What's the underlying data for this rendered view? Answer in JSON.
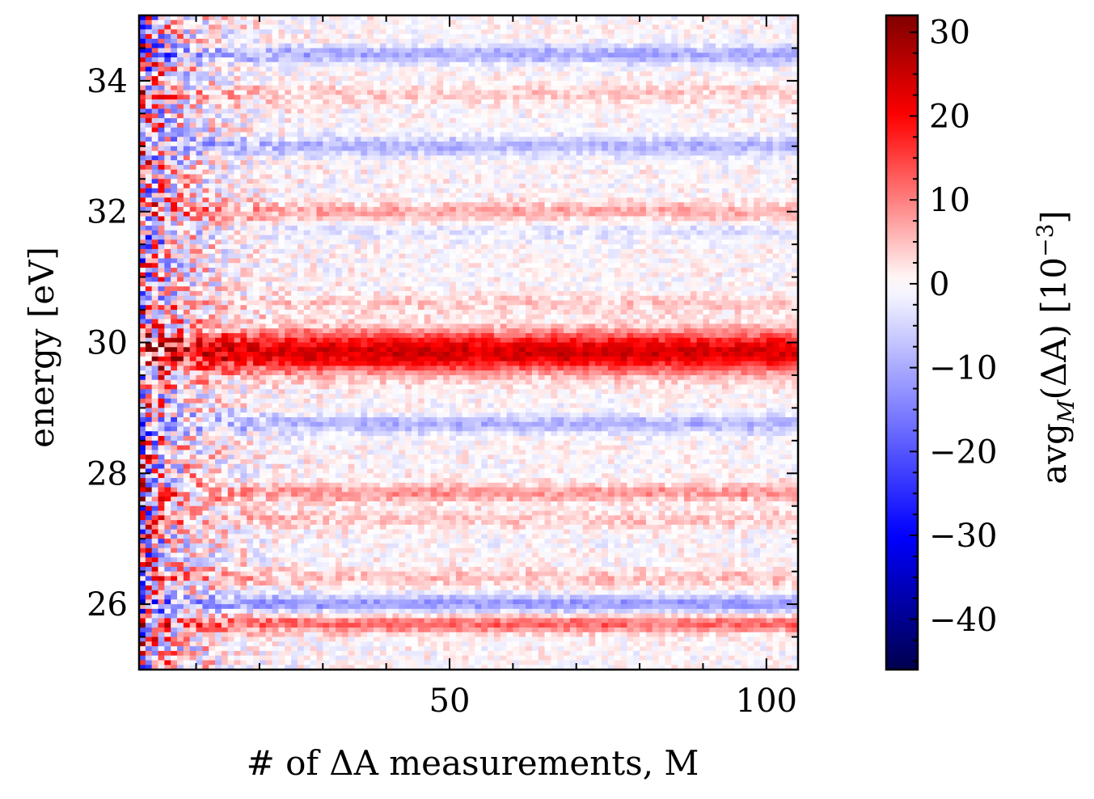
{
  "chart_data": {
    "type": "heatmap",
    "xlabel": "# of ΔA measurements, M",
    "ylabel": "energy [eV]",
    "colorbar_label": "avg_M(ΔA) [10^-3]",
    "colorbar_label_parts": {
      "main": "avg",
      "sub": "M",
      "arg": "(ΔA) [10",
      "sup": "−3",
      "close": "]"
    },
    "colormap": "seismic",
    "colormap_colors": [
      "#00004d",
      "#0000ff",
      "#ffffff",
      "#ff0000",
      "#800000"
    ],
    "xlim": [
      1,
      105
    ],
    "ylim": [
      25,
      35
    ],
    "clim": [
      -46,
      32
    ],
    "x_ticks": [
      50,
      100
    ],
    "x_tick_labels": [
      "50",
      "100"
    ],
    "y_ticks": [
      26,
      28,
      30,
      32,
      34
    ],
    "y_tick_labels": [
      "26",
      "28",
      "30",
      "32",
      "34"
    ],
    "colorbar_ticks": [
      30,
      20,
      10,
      0,
      -10,
      -20,
      -30,
      -40
    ],
    "colorbar_tick_labels": [
      "30",
      "20",
      "10",
      "0",
      "−10",
      "−20",
      "−30",
      "−40"
    ],
    "bands": [
      {
        "energy": 29.85,
        "value": 24
      },
      {
        "energy": 25.7,
        "value": 12
      },
      {
        "energy": 27.7,
        "value": 8
      },
      {
        "energy": 32.0,
        "value": 7
      },
      {
        "energy": 28.75,
        "value": -9
      },
      {
        "energy": 33.0,
        "value": -9
      },
      {
        "energy": 34.4,
        "value": -10
      },
      {
        "energy": 26.0,
        "value": -12
      },
      {
        "energy": 26.4,
        "value": 5
      },
      {
        "energy": 27.3,
        "value": 4
      },
      {
        "energy": 31.7,
        "value": -3
      },
      {
        "energy": 30.6,
        "value": 4
      },
      {
        "energy": 33.8,
        "value": 4
      }
    ]
  }
}
